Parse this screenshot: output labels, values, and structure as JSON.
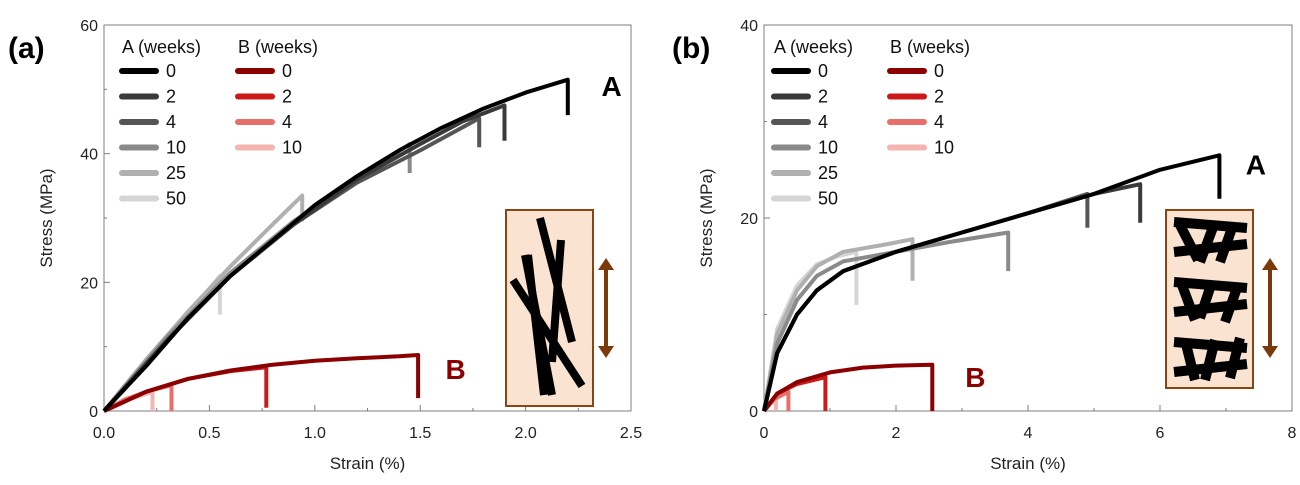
{
  "chart_data": [
    {
      "type": "line",
      "panel_label": "(a)",
      "xlabel": "Strain (%)",
      "ylabel": "Stress (MPa)",
      "xlim": [
        0,
        2.5
      ],
      "ylim": [
        0,
        60
      ],
      "xticks": [
        "0.0",
        "0.5",
        "1.0",
        "1.5",
        "2.0",
        "2.5"
      ],
      "yticks": [
        "0",
        "20",
        "40",
        "60"
      ],
      "legend_placement": "top-left",
      "legend_headers": [
        "A (weeks)",
        "B (weeks)"
      ],
      "curve_labels": [
        {
          "text": "A",
          "x": 2.36,
          "y": 49,
          "color": "#000000"
        },
        {
          "text": "B",
          "x": 1.62,
          "y": 5,
          "color": "#8b0000"
        }
      ],
      "inset": {
        "type": "aligned-fibers",
        "arrow": "vertical",
        "fill": "#fbe3d1",
        "border": "#8b4513",
        "arrow_color": "#7b3a0a"
      },
      "series": [
        {
          "name": "0",
          "group": "A",
          "color": "#000000",
          "points": [
            [
              0,
              0
            ],
            [
              0.2,
              7
            ],
            [
              0.4,
              14.5
            ],
            [
              0.6,
              21
            ],
            [
              0.8,
              26.5
            ],
            [
              1.0,
              32
            ],
            [
              1.2,
              36.5
            ],
            [
              1.4,
              40.5
            ],
            [
              1.6,
              44
            ],
            [
              1.8,
              47
            ],
            [
              2.0,
              49.5
            ],
            [
              2.2,
              51.5
            ]
          ],
          "break_to": 46
        },
        {
          "name": "2",
          "group": "A",
          "color": "#3a3a3a",
          "points": [
            [
              0,
              0
            ],
            [
              0.3,
              11
            ],
            [
              0.6,
              21
            ],
            [
              0.9,
              29
            ],
            [
              1.2,
              36
            ],
            [
              1.5,
              41.5
            ],
            [
              1.7,
              45
            ],
            [
              1.9,
              47.5
            ]
          ],
          "break_to": 42
        },
        {
          "name": "4",
          "group": "A",
          "color": "#555555",
          "points": [
            [
              0,
              0
            ],
            [
              0.3,
              11
            ],
            [
              0.6,
              21
            ],
            [
              0.9,
              29
            ],
            [
              1.2,
              35.5
            ],
            [
              1.5,
              40.5
            ],
            [
              1.78,
              45.5
            ]
          ],
          "break_to": 41
        },
        {
          "name": "10",
          "group": "A",
          "color": "#8a8a8a",
          "points": [
            [
              0,
              0
            ],
            [
              0.3,
              11.5
            ],
            [
              0.6,
              21.5
            ],
            [
              0.9,
              29.5
            ],
            [
              1.2,
              36
            ],
            [
              1.45,
              41.5
            ]
          ],
          "break_to": 37
        },
        {
          "name": "25",
          "group": "A",
          "color": "#b0b0b0",
          "points": [
            [
              0,
              0
            ],
            [
              0.2,
              8
            ],
            [
              0.4,
              15.5
            ],
            [
              0.6,
              22.5
            ],
            [
              0.8,
              29
            ],
            [
              0.94,
              33.5
            ]
          ],
          "break_to": 29.5
        },
        {
          "name": "50",
          "group": "A",
          "color": "#d5d5d5",
          "points": [
            [
              0,
              0
            ],
            [
              0.15,
              6
            ],
            [
              0.3,
              11.5
            ],
            [
              0.45,
              17
            ],
            [
              0.55,
              21
            ]
          ],
          "break_to": 15
        },
        {
          "name": "0",
          "group": "B",
          "color": "#8b0000",
          "points": [
            [
              0,
              0
            ],
            [
              0.2,
              3
            ],
            [
              0.4,
              5
            ],
            [
              0.6,
              6.3
            ],
            [
              0.8,
              7.2
            ],
            [
              1.0,
              7.8
            ],
            [
              1.2,
              8.2
            ],
            [
              1.4,
              8.5
            ],
            [
              1.49,
              8.7
            ]
          ],
          "break_to": 2
        },
        {
          "name": "2",
          "group": "B",
          "color": "#cc1a1a",
          "points": [
            [
              0,
              0
            ],
            [
              0.2,
              3
            ],
            [
              0.4,
              5
            ],
            [
              0.6,
              6.2
            ],
            [
              0.77,
              6.8
            ]
          ],
          "break_to": 0.5
        },
        {
          "name": "4",
          "group": "B",
          "color": "#e8706a",
          "points": [
            [
              0,
              0
            ],
            [
              0.1,
              1.8
            ],
            [
              0.2,
              3
            ],
            [
              0.32,
              4
            ]
          ],
          "break_to": 0
        },
        {
          "name": "10",
          "group": "B",
          "color": "#f4b4b0",
          "points": [
            [
              0,
              0
            ],
            [
              0.1,
              1.6
            ],
            [
              0.23,
              3
            ]
          ],
          "break_to": 0
        }
      ]
    },
    {
      "type": "line",
      "panel_label": "(b)",
      "xlabel": "Strain (%)",
      "ylabel": "Stress (MPa)",
      "xlim": [
        0,
        8
      ],
      "ylim": [
        0,
        40
      ],
      "xticks": [
        "0",
        "2",
        "4",
        "6",
        "8"
      ],
      "yticks": [
        "0",
        "20",
        "40"
      ],
      "legend_placement": "top-left",
      "legend_headers": [
        "A (weeks)",
        "B (weeks)"
      ],
      "curve_labels": [
        {
          "text": "A",
          "x": 7.3,
          "y": 24.5,
          "color": "#000000"
        },
        {
          "text": "B",
          "x": 3.05,
          "y": 2.5,
          "color": "#8b0000"
        }
      ],
      "inset": {
        "type": "transverse-fibers",
        "arrow": "vertical",
        "fill": "#fbe3d1",
        "border": "#8b4513",
        "arrow_color": "#7b3a0a"
      },
      "series": [
        {
          "name": "0",
          "group": "A",
          "color": "#000000",
          "points": [
            [
              0,
              0
            ],
            [
              0.2,
              6
            ],
            [
              0.5,
              10
            ],
            [
              0.8,
              12.5
            ],
            [
              1.2,
              14.5
            ],
            [
              2,
              16.5
            ],
            [
              3,
              18.5
            ],
            [
              4,
              20.5
            ],
            [
              5,
              22.5
            ],
            [
              6,
              25
            ],
            [
              6.9,
              26.5
            ]
          ],
          "break_to": 22
        },
        {
          "name": "2",
          "group": "A",
          "color": "#3a3a3a",
          "points": [
            [
              0,
              0
            ],
            [
              0.2,
              6
            ],
            [
              0.5,
              10
            ],
            [
              0.8,
              12.5
            ],
            [
              1.2,
              14.5
            ],
            [
              2,
              16.5
            ],
            [
              3,
              18.5
            ],
            [
              4,
              20.5
            ],
            [
              5,
              22.5
            ],
            [
              5.7,
              23.5
            ]
          ],
          "break_to": 19.5
        },
        {
          "name": "4",
          "group": "A",
          "color": "#555555",
          "points": [
            [
              0,
              0
            ],
            [
              0.2,
              6
            ],
            [
              0.5,
              10
            ],
            [
              0.8,
              12.5
            ],
            [
              1.2,
              14.5
            ],
            [
              2,
              16.5
            ],
            [
              3,
              18.5
            ],
            [
              4,
              20.5
            ],
            [
              4.9,
              22.5
            ]
          ],
          "break_to": 19
        },
        {
          "name": "10",
          "group": "A",
          "color": "#8a8a8a",
          "points": [
            [
              0,
              0
            ],
            [
              0.2,
              7
            ],
            [
              0.5,
              11.5
            ],
            [
              0.8,
              14
            ],
            [
              1.2,
              15.5
            ],
            [
              2,
              16.5
            ],
            [
              2.8,
              17.5
            ],
            [
              3.7,
              18.5
            ]
          ],
          "break_to": 14.5
        },
        {
          "name": "25",
          "group": "A",
          "color": "#b0b0b0",
          "points": [
            [
              0,
              0
            ],
            [
              0.2,
              8
            ],
            [
              0.5,
              12.5
            ],
            [
              0.8,
              15
            ],
            [
              1.2,
              16.5
            ],
            [
              1.8,
              17.2
            ],
            [
              2.25,
              17.8
            ]
          ],
          "break_to": 13.5
        },
        {
          "name": "50",
          "group": "A",
          "color": "#d5d5d5",
          "points": [
            [
              0,
              0
            ],
            [
              0.2,
              8.5
            ],
            [
              0.5,
              13
            ],
            [
              0.8,
              15.2
            ],
            [
              1.1,
              16
            ],
            [
              1.4,
              16.5
            ]
          ],
          "break_to": 11
        },
        {
          "name": "0",
          "group": "B",
          "color": "#8b0000",
          "points": [
            [
              0,
              0
            ],
            [
              0.2,
              1.8
            ],
            [
              0.5,
              3
            ],
            [
              1,
              4
            ],
            [
              1.5,
              4.5
            ],
            [
              2,
              4.7
            ],
            [
              2.55,
              4.8
            ]
          ],
          "break_to": 0
        },
        {
          "name": "2",
          "group": "B",
          "color": "#cc1a1a",
          "points": [
            [
              0,
              0
            ],
            [
              0.2,
              1.8
            ],
            [
              0.5,
              2.8
            ],
            [
              0.93,
              3.5
            ]
          ],
          "break_to": 0
        },
        {
          "name": "4",
          "group": "B",
          "color": "#e8706a",
          "points": [
            [
              0,
              0
            ],
            [
              0.15,
              1.2
            ],
            [
              0.37,
              2
            ]
          ],
          "break_to": 0
        },
        {
          "name": "10",
          "group": "B",
          "color": "#f4b4b0",
          "points": [
            [
              0,
              0
            ],
            [
              0.1,
              0.8
            ],
            [
              0.18,
              1.2
            ]
          ],
          "break_to": 0
        }
      ]
    }
  ]
}
